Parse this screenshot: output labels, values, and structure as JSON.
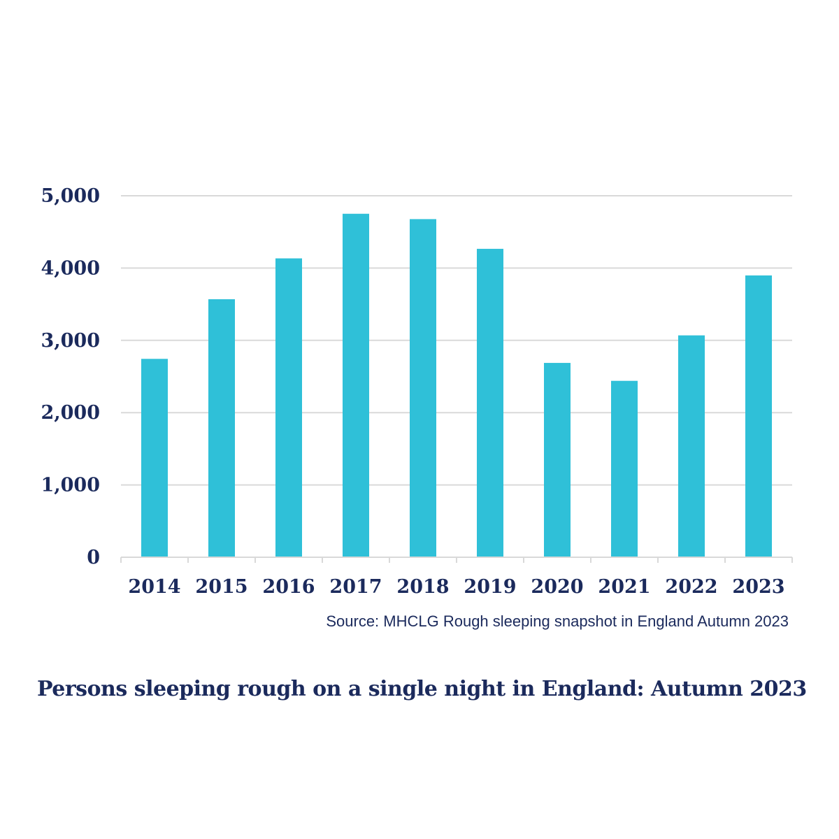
{
  "colors": {
    "bar": "#2fc0d8",
    "text": "#1b2a5c",
    "grid": "#d9d9d9",
    "axis": "#d9d9d9",
    "background": "#ffffff"
  },
  "chart_data": {
    "type": "bar",
    "title": "Persons sleeping rough on a single night in England: Autumn 2023",
    "source": "Source: MHCLG Rough sleeping snapshot in England Autumn 2023",
    "categories": [
      "2014",
      "2015",
      "2016",
      "2017",
      "2018",
      "2019",
      "2020",
      "2021",
      "2022",
      "2023"
    ],
    "values": [
      2744,
      3569,
      4134,
      4751,
      4677,
      4266,
      2688,
      2440,
      3069,
      3898
    ],
    "ylim": [
      0,
      5000
    ],
    "yticks": [
      0,
      1000,
      2000,
      3000,
      4000,
      5000
    ],
    "ytick_labels": [
      "0",
      "1,000",
      "2,000",
      "3,000",
      "4,000",
      "5,000"
    ],
    "xlabel": "",
    "ylabel": "",
    "grid": true,
    "legend": "none"
  }
}
